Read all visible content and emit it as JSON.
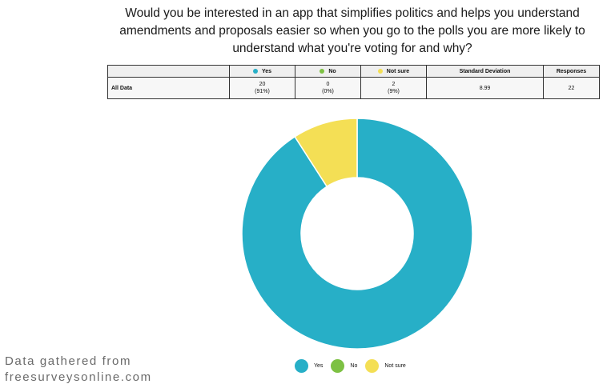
{
  "question": "Would you be interested in an app that simplifies politics and helps you understand amendments and proposals easier so when you go to the polls you are more likely to understand what you're voting for and why?",
  "table": {
    "headers": {
      "yes": "Yes",
      "no": "No",
      "not_sure": "Not sure",
      "std_dev": "Standard Deviation",
      "responses": "Responses"
    },
    "row": {
      "label": "All Data",
      "yes_count": "20",
      "yes_pct": "(91%)",
      "no_count": "0",
      "no_pct": "(0%)",
      "not_sure_count": "2",
      "not_sure_pct": "(9%)",
      "std_dev": "8.99",
      "responses": "22"
    }
  },
  "chart_data": {
    "type": "pie",
    "donut": true,
    "categories": [
      "Yes",
      "No",
      "Not sure"
    ],
    "values": [
      20,
      0,
      2
    ],
    "colors": [
      "#27afc7",
      "#7dc143",
      "#f4df55"
    ],
    "legend_position": "bottom"
  },
  "footer": {
    "line1": "Data gathered from",
    "line2": "freesurveysonline.com"
  }
}
